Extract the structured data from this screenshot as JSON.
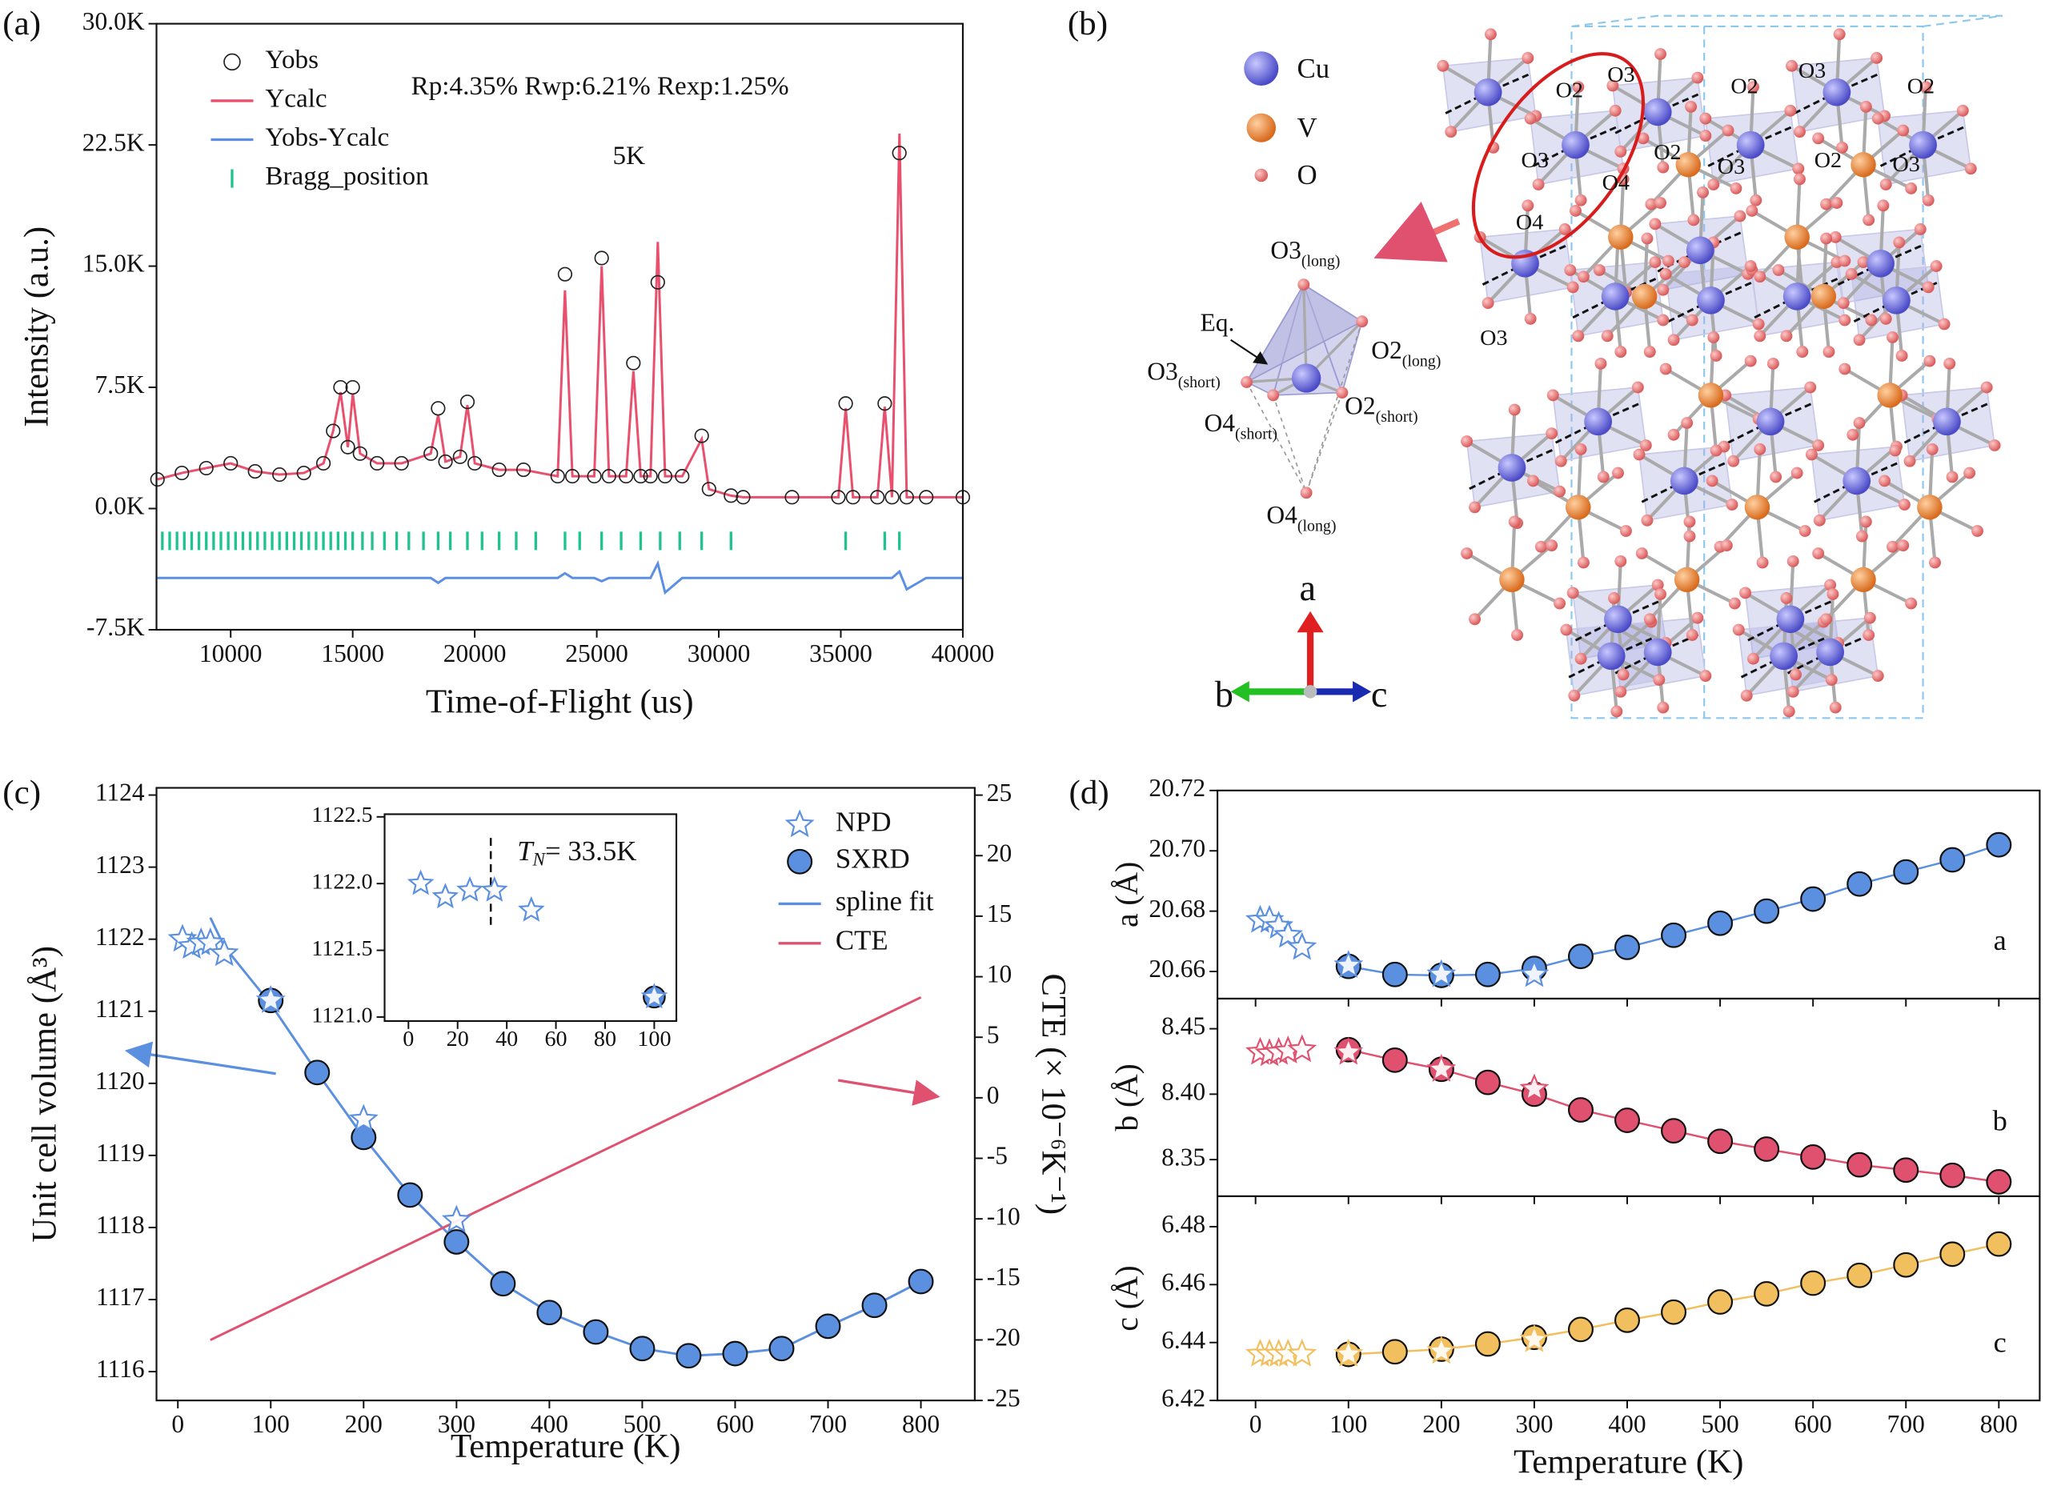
{
  "chart_data": [
    {
      "type": "line",
      "label": "(a)",
      "xlabel": "Time-of-Flight (us)",
      "ylabel": "Intensity (a.u.)",
      "annotations": [
        "Rp:4.35% Rwp:6.21% Rexp:1.25%",
        "5K"
      ],
      "xlim": [
        6960,
        40000
      ],
      "xticks": [
        10000,
        15000,
        20000,
        25000,
        30000,
        35000,
        40000
      ],
      "ylim": [
        -7500,
        30000
      ],
      "yticks": [
        {
          "value": -7500,
          "label": "-7.5K"
        },
        {
          "value": 0,
          "label": "0.0K"
        },
        {
          "value": 7500,
          "label": "7.5K"
        },
        {
          "value": 15000,
          "label": "15.0K"
        },
        {
          "value": 22500,
          "label": "22.5K"
        },
        {
          "value": 30000,
          "label": "30.0K"
        }
      ],
      "x": [
        7000,
        8000,
        9000,
        10000,
        11000,
        12000,
        13000,
        13800,
        14200,
        14500,
        14800,
        15000,
        15300,
        16000,
        17000,
        18200,
        18500,
        18800,
        19400,
        19700,
        20000,
        21000,
        22000,
        23400,
        23700,
        24000,
        24900,
        25200,
        25500,
        26200,
        26500,
        26800,
        27200,
        27500,
        27800,
        28500,
        29300,
        29600,
        30500,
        31000,
        33000,
        34900,
        35200,
        35500,
        36500,
        36800,
        37100,
        37400,
        37700,
        38500,
        40000
      ],
      "series": [
        {
          "name": "Yobs",
          "color": "#222222",
          "marker": "open-circle",
          "values": [
            1800,
            2200,
            2500,
            2800,
            2300,
            2100,
            2200,
            2800,
            4800,
            7500,
            3800,
            7500,
            3400,
            2800,
            2800,
            3400,
            6200,
            2900,
            3200,
            6600,
            2800,
            2400,
            2400,
            2000,
            14500,
            2000,
            2000,
            15500,
            2000,
            2000,
            9000,
            2000,
            2000,
            14000,
            2000,
            2000,
            4500,
            1200,
            800,
            700,
            700,
            700,
            6500,
            700,
            700,
            6500,
            700,
            22000,
            700,
            700,
            700
          ]
        },
        {
          "name": "Ycalc",
          "color": "#e8506e",
          "marker": "line",
          "values": [
            1800,
            2200,
            2500,
            2800,
            2300,
            2100,
            2200,
            2800,
            4800,
            7200,
            3800,
            7100,
            3400,
            2800,
            2800,
            3400,
            5800,
            2900,
            3200,
            6400,
            2800,
            2400,
            2400,
            2000,
            13500,
            2000,
            2000,
            15000,
            2000,
            2000,
            8500,
            2000,
            2000,
            16500,
            2000,
            2000,
            4300,
            1200,
            800,
            700,
            700,
            700,
            6200,
            700,
            700,
            6300,
            700,
            23200,
            700,
            700,
            700
          ]
        },
        {
          "name": "Yobs-Ycalc",
          "color": "#5b8fe6",
          "marker": "line",
          "values": [
            -4300,
            -4300,
            -4300,
            -4300,
            -4300,
            -4300,
            -4300,
            -4300,
            -4300,
            -4300,
            -4300,
            -4300,
            -4300,
            -4300,
            -4300,
            -4300,
            -4600,
            -4300,
            -4300,
            -4300,
            -4300,
            -4300,
            -4300,
            -4300,
            -4000,
            -4300,
            -4300,
            -4500,
            -4300,
            -4300,
            -4300,
            -4300,
            -4300,
            -3400,
            -5200,
            -4300,
            -4300,
            -4300,
            -4300,
            -4300,
            -4300,
            -4300,
            -4300,
            -4300,
            -4300,
            -4300,
            -4300,
            -3900,
            -5000,
            -4300,
            -4300
          ]
        },
        {
          "name": "Bragg_position",
          "color": "#1fc38f",
          "marker": "tick",
          "x": [
            7200,
            7500,
            7800,
            8100,
            8400,
            8700,
            9000,
            9300,
            9600,
            9900,
            10200,
            10500,
            10800,
            11100,
            11400,
            11700,
            12000,
            12300,
            12600,
            12900,
            13200,
            13500,
            13800,
            14100,
            14400,
            14700,
            15000,
            15400,
            15800,
            16300,
            16800,
            17300,
            17900,
            18500,
            19000,
            19700,
            20300,
            21000,
            21700,
            22500,
            23700,
            24300,
            25200,
            26000,
            26800,
            27600,
            28400,
            29300,
            30500,
            35200,
            36800,
            37400
          ],
          "values": [
            -2000,
            -2000,
            -2000,
            -2000,
            -2000,
            -2000,
            -2000,
            -2000,
            -2000,
            -2000,
            -2000,
            -2000,
            -2000,
            -2000,
            -2000,
            -2000,
            -2000,
            -2000,
            -2000,
            -2000,
            -2000,
            -2000,
            -2000,
            -2000,
            -2000,
            -2000,
            -2000,
            -2000,
            -2000,
            -2000,
            -2000,
            -2000,
            -2000,
            -2000,
            -2000,
            -2000,
            -2000,
            -2000,
            -2000,
            -2000,
            -2000,
            -2000,
            -2000,
            -2000,
            -2000,
            -2000,
            -2000,
            -2000,
            -2000,
            -2000,
            -2000,
            -2000
          ]
        }
      ]
    },
    {
      "type": "line",
      "label": "(c)",
      "xlabel": "Temperature (K)",
      "ylabel": "Unit cell volume (Å³)",
      "y2label": "CTE (× 10⁻⁶K⁻¹)",
      "xlim": [
        -23,
        858
      ],
      "xticks": [
        0,
        100,
        200,
        300,
        400,
        500,
        600,
        700,
        800
      ],
      "ylim": [
        1115.6,
        1124.1
      ],
      "yticks": [
        1116,
        1117,
        1118,
        1119,
        1120,
        1121,
        1122,
        1123,
        1124
      ],
      "y2lim": [
        -25,
        25.6
      ],
      "y2ticks": [
        25,
        20,
        15,
        10,
        5,
        0,
        -5,
        -10,
        -15,
        -20,
        -25
      ],
      "series": [
        {
          "name": "NPD",
          "color": "#5b8fdf",
          "marker": "star",
          "x": [
            5,
            15,
            25,
            35,
            50,
            100,
            200,
            300
          ],
          "values": [
            1122.0,
            1121.9,
            1121.95,
            1121.95,
            1121.8,
            1121.15,
            1119.5,
            1118.1
          ]
        },
        {
          "name": "SXRD",
          "color": "#5b8fdf",
          "marker": "circle",
          "x": [
            100,
            150,
            200,
            250,
            300,
            350,
            400,
            450,
            500,
            550,
            600,
            650,
            700,
            750,
            800
          ],
          "values": [
            1121.15,
            1120.15,
            1119.25,
            1118.45,
            1117.8,
            1117.22,
            1116.82,
            1116.55,
            1116.32,
            1116.22,
            1116.25,
            1116.32,
            1116.63,
            1116.92,
            1117.25
          ]
        },
        {
          "name": "spline fit",
          "color": "#5b8fdf",
          "marker": "line",
          "x": [
            35,
            50,
            100,
            150,
            200,
            250,
            300,
            350,
            400,
            450,
            500,
            550,
            600,
            650,
            700,
            750,
            800
          ],
          "values": [
            1122.3,
            1121.9,
            1121.1,
            1120.15,
            1119.25,
            1118.45,
            1117.8,
            1117.22,
            1116.82,
            1116.55,
            1116.32,
            1116.22,
            1116.25,
            1116.32,
            1116.63,
            1116.92,
            1117.25
          ]
        },
        {
          "name": "CTE",
          "color": "#e0506f",
          "marker": "line",
          "axis": "y2",
          "x": [
            35,
            800
          ],
          "values": [
            -20,
            8.3
          ]
        }
      ],
      "inset": {
        "xlim": [
          -9.7,
          109
        ],
        "xticks": [
          0,
          20,
          40,
          60,
          80,
          100
        ],
        "ylim": [
          1120.97,
          1122.52
        ],
        "yticks": [
          {
            "value": 1121,
            "label": "1121.0"
          },
          1121.5,
          {
            "value": 1122,
            "label": "1122.0"
          },
          1122.5
        ],
        "vline": 33.5,
        "annotation": {
          "symbol": "T",
          "subscript": "N",
          "text": "= 33.5K"
        },
        "series": [
          {
            "color": "#5b8fdf",
            "marker": "circle",
            "x": [
              100
            ],
            "values": [
              1121.15
            ]
          },
          {
            "color": "#5b8fdf",
            "marker": "star",
            "x": [
              5,
              15,
              25,
              35,
              50,
              100
            ],
            "values": [
              1122.0,
              1121.9,
              1121.95,
              1121.95,
              1121.8,
              1121.15
            ]
          }
        ]
      }
    },
    {
      "type": "scatter",
      "label": "(d)",
      "xlabel": "Temperature (K)",
      "xlim": [
        -41,
        844
      ],
      "xticks": [
        0,
        100,
        200,
        300,
        400,
        500,
        600,
        700,
        800
      ],
      "panels": [
        {
          "ylabel": "a (Å)",
          "tag": "a",
          "ylim": [
            20.651,
            20.72
          ],
          "yticks": [
            20.66,
            20.68,
            {
              "value": 20.7,
              "label": "20.70"
            },
            20.72
          ],
          "series": [
            {
              "color": "#5b8fdf",
              "marker": "circle",
              "line": true,
              "x": [
                100,
                150,
                200,
                250,
                300,
                350,
                400,
                450,
                500,
                550,
                600,
                650,
                700,
                750,
                800
              ],
              "values": [
                20.6617,
                20.659,
                20.6587,
                20.659,
                20.661,
                20.665,
                20.668,
                20.672,
                20.676,
                20.68,
                20.684,
                20.689,
                20.693,
                20.697,
                20.702
              ]
            },
            {
              "color": "#5b8fdf",
              "marker": "star",
              "x": [
                5,
                15,
                25,
                35,
                50,
                100,
                200,
                300
              ],
              "values": [
                20.677,
                20.677,
                20.675,
                20.672,
                20.668,
                20.662,
                20.659,
                20.659
              ]
            }
          ]
        },
        {
          "ylabel": "b (Å)",
          "tag": "b",
          "ylim": [
            8.322,
            8.473
          ],
          "yticks": [
            8.35,
            {
              "value": 8.4,
              "label": "8.40"
            },
            8.45
          ],
          "series": [
            {
              "color": "#e0506f",
              "marker": "circle",
              "line": true,
              "x": [
                100,
                150,
                200,
                250,
                300,
                350,
                400,
                450,
                500,
                550,
                600,
                650,
                700,
                750,
                800
              ],
              "values": [
                8.434,
                8.426,
                8.419,
                8.409,
                8.4,
                8.388,
                8.38,
                8.372,
                8.364,
                8.358,
                8.352,
                8.346,
                8.342,
                8.338,
                8.333
              ]
            },
            {
              "color": "#e0506f",
              "marker": "star",
              "x": [
                5,
                15,
                25,
                35,
                50,
                100,
                200,
                300
              ],
              "values": [
                8.432,
                8.431,
                8.432,
                8.433,
                8.434,
                8.432,
                8.419,
                8.404
              ]
            }
          ]
        },
        {
          "ylabel": "c (Å)",
          "tag": "c",
          "ylim": [
            6.42,
            6.4905
          ],
          "yticks": [
            6.42,
            6.44,
            6.46,
            6.48
          ],
          "series": [
            {
              "color": "#f2bf5e",
              "marker": "circle",
              "line": true,
              "x": [
                100,
                150,
                200,
                250,
                300,
                350,
                400,
                450,
                500,
                550,
                600,
                650,
                700,
                750,
                800
              ],
              "values": [
                6.4359,
                6.4368,
                6.4377,
                6.4395,
                6.4418,
                6.4445,
                6.4477,
                6.4505,
                6.454,
                6.4568,
                6.4605,
                6.4632,
                6.4668,
                6.4705,
                6.474
              ]
            },
            {
              "color": "#f2bf5e",
              "marker": "star",
              "x": [
                5,
                15,
                25,
                35,
                50,
                100,
                200,
                300
              ],
              "values": [
                6.436,
                6.436,
                6.436,
                6.436,
                6.436,
                6.436,
                6.437,
                6.441
              ]
            }
          ]
        }
      ]
    }
  ],
  "structure": {
    "label": "(b)",
    "legend": [
      "Cu",
      "V",
      "O"
    ],
    "atom_labels": [
      "O2",
      "O3",
      "O2",
      "O3",
      "O2",
      "O3",
      "O4",
      "O2",
      "O3",
      "O2",
      "O3",
      "O4",
      "O3"
    ],
    "octahedron": [
      {
        "text": "O3",
        "sub": "(long)"
      },
      {
        "text": "Eq."
      },
      {
        "text": "O2",
        "sub": "(long)"
      },
      {
        "text": "O3",
        "sub": "(short)"
      },
      {
        "text": "O2",
        "sub": "(short)"
      },
      {
        "text": "O4",
        "sub": "(short)"
      },
      {
        "text": "O4",
        "sub": "(long)"
      }
    ],
    "axes": [
      "a",
      "b",
      "c"
    ]
  }
}
